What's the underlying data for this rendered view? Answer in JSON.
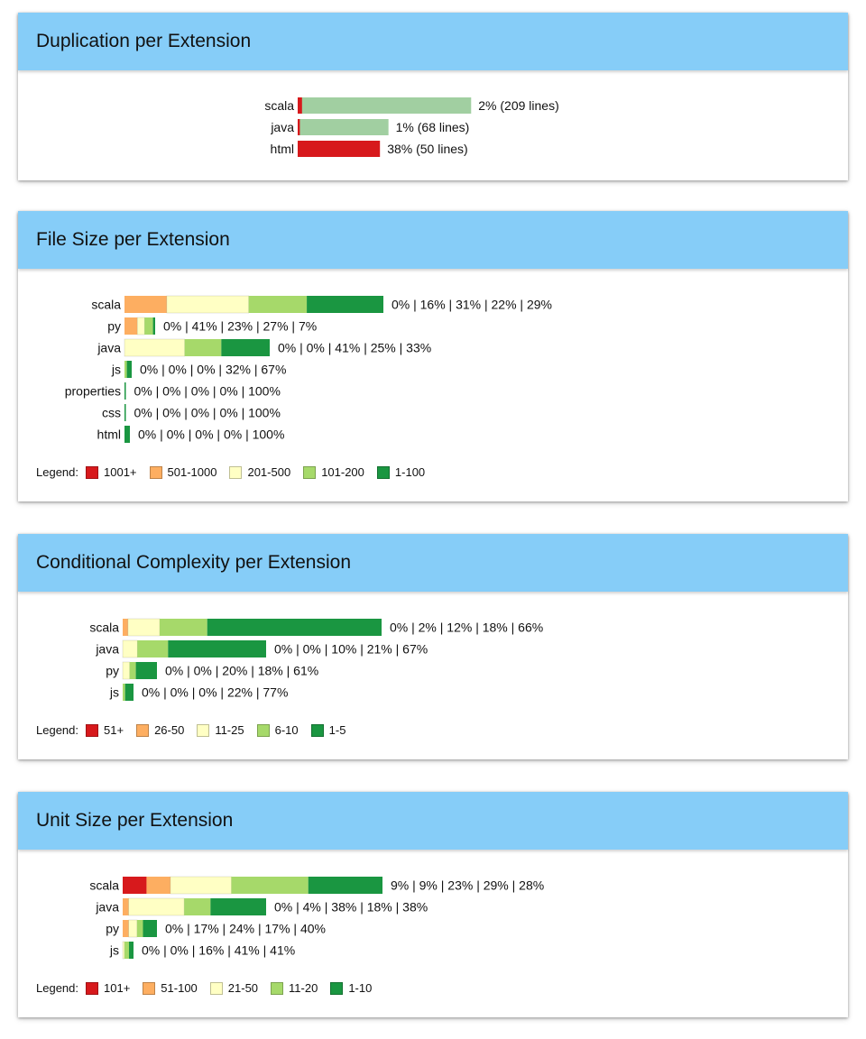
{
  "duplication": {
    "title": "Duplication per Extension",
    "chart_data": {
      "type": "bar",
      "categories": [
        "scala",
        "java",
        "html"
      ],
      "series": [
        {
          "values": [
            2,
            1,
            38
          ]
        }
      ],
      "value_labels": [
        "2% (209 lines)",
        "1% (68 lines)",
        "38% (50 lines)"
      ],
      "bar_color": "#a1cfa1",
      "marker_color": "#d7191c"
    }
  },
  "file_size": {
    "title": "File Size per Extension",
    "chart_data": {
      "type": "bar",
      "stacked": true,
      "categories": [
        "scala",
        "py",
        "java",
        "js",
        "properties",
        "css",
        "html"
      ],
      "segments": [
        "1001+",
        "501-1000",
        "201-500",
        "101-200",
        "1-100"
      ],
      "values": [
        [
          0,
          16,
          31,
          22,
          29
        ],
        [
          0,
          41,
          23,
          27,
          7
        ],
        [
          0,
          0,
          41,
          25,
          33
        ],
        [
          0,
          0,
          0,
          32,
          67
        ],
        [
          0,
          0,
          0,
          0,
          100
        ],
        [
          0,
          0,
          0,
          0,
          100
        ],
        [
          0,
          0,
          0,
          0,
          100
        ]
      ],
      "value_labels": [
        "0% | 16% | 31% | 22% | 29%",
        "0% | 41% | 23% | 27% | 7%",
        "0% | 0% | 41% | 25% | 33%",
        "0% | 0% | 0% | 32% | 67%",
        "0% | 0% | 0% | 0% | 100%",
        "0% | 0% | 0% | 0% | 100%",
        "0% | 0% | 0% | 0% | 100%"
      ]
    },
    "legend": {
      "title": "Legend:",
      "items": [
        {
          "label": "1001+",
          "color": "#d7191c"
        },
        {
          "label": "501-1000",
          "color": "#fdae61"
        },
        {
          "label": "201-500",
          "color": "#ffffc4"
        },
        {
          "label": "101-200",
          "color": "#a6d96a"
        },
        {
          "label": "1-100",
          "color": "#1a9641"
        }
      ]
    }
  },
  "conditional_complexity": {
    "title": "Conditional Complexity per Extension",
    "chart_data": {
      "type": "bar",
      "stacked": true,
      "categories": [
        "scala",
        "java",
        "py",
        "js"
      ],
      "segments": [
        "51+",
        "26-50",
        "11-25",
        "6-10",
        "1-5"
      ],
      "values": [
        [
          0,
          2,
          12,
          18,
          66
        ],
        [
          0,
          0,
          10,
          21,
          67
        ],
        [
          0,
          0,
          20,
          18,
          61
        ],
        [
          0,
          0,
          0,
          22,
          77
        ]
      ],
      "value_labels": [
        "0% | 2% | 12% | 18% | 66%",
        "0% | 0% | 10% | 21% | 67%",
        "0% | 0% | 20% | 18% | 61%",
        "0% | 0% | 0% | 22% | 77%"
      ]
    },
    "legend": {
      "title": "Legend:",
      "items": [
        {
          "label": "51+",
          "color": "#d7191c"
        },
        {
          "label": "26-50",
          "color": "#fdae61"
        },
        {
          "label": "11-25",
          "color": "#ffffc4"
        },
        {
          "label": "6-10",
          "color": "#a6d96a"
        },
        {
          "label": "1-5",
          "color": "#1a9641"
        }
      ]
    }
  },
  "unit_size": {
    "title": "Unit Size per Extension",
    "chart_data": {
      "type": "bar",
      "stacked": true,
      "categories": [
        "scala",
        "java",
        "py",
        "js"
      ],
      "segments": [
        "101+",
        "51-100",
        "21-50",
        "11-20",
        "1-10"
      ],
      "values": [
        [
          9,
          9,
          23,
          29,
          28
        ],
        [
          0,
          4,
          38,
          18,
          38
        ],
        [
          0,
          17,
          24,
          17,
          40
        ],
        [
          0,
          0,
          16,
          41,
          41
        ]
      ],
      "value_labels": [
        "9% | 9% | 23% | 29% | 28%",
        "0% | 4% | 38% | 18% | 38%",
        "0% | 17% | 24% | 17% | 40%",
        "0% | 0% | 16% | 41% | 41%"
      ]
    },
    "legend": {
      "title": "Legend:",
      "items": [
        {
          "label": "101+",
          "color": "#d7191c"
        },
        {
          "label": "51-100",
          "color": "#fdae61"
        },
        {
          "label": "21-50",
          "color": "#ffffc4"
        },
        {
          "label": "11-20",
          "color": "#a6d96a"
        },
        {
          "label": "1-10",
          "color": "#1a9641"
        }
      ]
    }
  }
}
